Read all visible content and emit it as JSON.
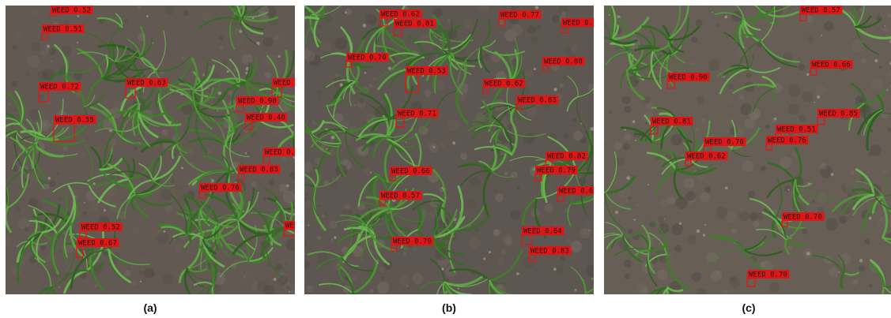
{
  "colors": {
    "box": "#e01616",
    "soil": "#5f574f",
    "grass": "#4a8a32"
  },
  "panels": [
    {
      "caption": "(a)",
      "detections": [
        {
          "label": "WEED 0.52"
        },
        {
          "label": "WEED 0.51"
        },
        {
          "label": "WEED 0.72"
        },
        {
          "label": "WEED 0.63"
        },
        {
          "label": "WEED 0.55"
        },
        {
          "label": "WEED 0.90"
        },
        {
          "label": "WEED 0.40"
        },
        {
          "label": "WEED 0"
        },
        {
          "label": "WEED 0.4"
        },
        {
          "label": "WEED 0.83"
        },
        {
          "label": "WEED 0.76"
        },
        {
          "label": "WEED 0.52"
        },
        {
          "label": "WEED 0.67"
        },
        {
          "label": "WEED"
        }
      ]
    },
    {
      "caption": "(b)",
      "detections": [
        {
          "label": "WEED 0.62"
        },
        {
          "label": "WEED 0.81"
        },
        {
          "label": "WEED 0.77"
        },
        {
          "label": "WEED 0.8"
        },
        {
          "label": "WEED 0.70"
        },
        {
          "label": "WEED 0.80"
        },
        {
          "label": "WEED 0.53"
        },
        {
          "label": "WEED 0.62"
        },
        {
          "label": "WEED 0.83"
        },
        {
          "label": "WEED 0.71"
        },
        {
          "label": "WEED 0.82"
        },
        {
          "label": "WEED 0.66"
        },
        {
          "label": "WEED 0.79"
        },
        {
          "label": "WEED 0.57"
        },
        {
          "label": "WEED 0.6"
        },
        {
          "label": "WEED 0.64"
        },
        {
          "label": "WEED 0.79"
        },
        {
          "label": "WEED 0.83"
        }
      ]
    },
    {
      "caption": "(c)",
      "detections": [
        {
          "label": "WEED 0.57"
        },
        {
          "label": "WEED 0.66"
        },
        {
          "label": "WEED 0.90"
        },
        {
          "label": "WEED 0.85"
        },
        {
          "label": "WEED 0.81"
        },
        {
          "label": "WEED 0.51"
        },
        {
          "label": "WEED 0.76"
        },
        {
          "label": "WEED 0.76"
        },
        {
          "label": "WEED 0.62"
        },
        {
          "label": "WEED 0.70"
        },
        {
          "label": "WEED 0.70"
        }
      ]
    }
  ]
}
